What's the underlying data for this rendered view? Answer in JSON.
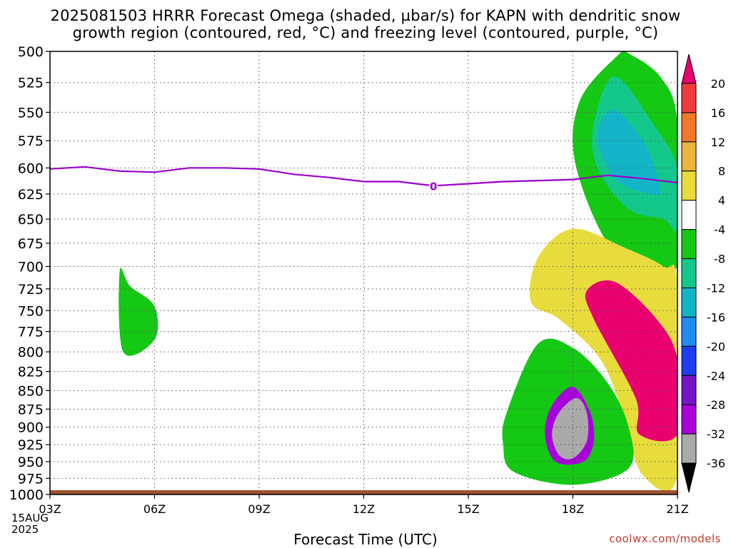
{
  "title_line1": "2025081503 HRRR Forecast Omega (shaded, µbar/s) for KAPN with dendritic snow",
  "title_line2": "growth region (contoured, red, °C) and freezing level (contoured, purple, °C)",
  "xlabel": "Forecast Time (UTC)",
  "credit": "coolwx.com/models",
  "date_line1": "15AUG",
  "date_line2": "2025",
  "colors": {
    "freezing_line": "#9900cc",
    "ground": "#a0522d",
    "credit": "#c0392b"
  },
  "chart_data": {
    "type": "heatmap",
    "title": "2025081503 HRRR Forecast Omega (shaded, µbar/s) for KAPN with dendritic snow growth region (contoured, red, °C) and freezing level (contoured, purple, °C)",
    "xlabel": "Forecast Time (UTC)",
    "ylabel": "",
    "x_ticks": [
      "03Z",
      "06Z",
      "09Z",
      "12Z",
      "15Z",
      "18Z",
      "21Z"
    ],
    "x_hours": [
      3,
      6,
      9,
      12,
      15,
      18,
      21
    ],
    "xlim": [
      3,
      21
    ],
    "y_ticks": [
      500,
      525,
      550,
      575,
      600,
      625,
      650,
      675,
      700,
      725,
      750,
      775,
      800,
      825,
      850,
      875,
      900,
      925,
      950,
      975,
      1000
    ],
    "ylim": [
      500,
      1000
    ],
    "y_scale": "log-pressure",
    "colorbar": {
      "labels": [
        "20",
        "16",
        "12",
        "8",
        "4",
        "-4",
        "-8",
        "-12",
        "-16",
        "-20",
        "-24",
        "-28",
        "-32",
        "-36"
      ],
      "colors": [
        "#e8006e",
        "#f03c3c",
        "#f07828",
        "#e8b43c",
        "#e8dc3c",
        "#ffffff",
        "#14c814",
        "#14c88c",
        "#14b4c8",
        "#1e8cf0",
        "#1e3cf0",
        "#7814c8",
        "#aa00dc",
        "#aaaaaa",
        "#000000"
      ]
    },
    "freezing_level": {
      "label": "0",
      "hours": [
        3,
        4,
        5,
        6,
        7,
        8,
        9,
        10,
        11,
        12,
        13,
        14,
        15,
        16,
        17,
        18,
        19,
        20,
        21
      ],
      "pressure": [
        601,
        599,
        603,
        604,
        600,
        600,
        601,
        606,
        609,
        613,
        613,
        617,
        615,
        613,
        612,
        611,
        607,
        610,
        614
      ]
    },
    "omega_regions": [
      {
        "value": -8,
        "hours": [
          5,
          5.3,
          6,
          6,
          5.1
        ],
        "pressure": [
          705,
          722,
          745,
          785,
          800
        ]
      },
      {
        "value": -8,
        "hours": [
          19.5,
          20.5,
          21,
          21,
          19.3,
          18.1,
          18.2,
          19.4
        ],
        "pressure": [
          500,
          520,
          560,
          700,
          690,
          600,
          540,
          500
        ]
      },
      {
        "value": -12,
        "hours": [
          19.2,
          20.3,
          21,
          21,
          20.6,
          19.6,
          18.7,
          18.6
        ],
        "pressure": [
          520,
          560,
          600,
          660,
          650,
          640,
          600,
          560
        ]
      },
      {
        "value": -16,
        "hours": [
          19.2,
          20.1,
          20.5,
          20.2,
          19.2,
          18.7
        ],
        "pressure": [
          548,
          580,
          620,
          625,
          610,
          570
        ]
      },
      {
        "value": 4,
        "hours": [
          17,
          18,
          19.5,
          20.6,
          21,
          21,
          20,
          19.5,
          18.8,
          17.6,
          16.8
        ],
        "pressure": [
          690,
          660,
          680,
          700,
          720,
          970,
          970,
          890,
          810,
          760,
          740
        ]
      },
      {
        "value": 20,
        "hours": [
          18.4,
          19.2,
          20.4,
          21,
          21,
          19.9,
          19.8,
          18.6
        ],
        "pressure": [
          727,
          717,
          760,
          810,
          910,
          910,
          860,
          760
        ]
      },
      {
        "value": -8,
        "hours": [
          16.1,
          17,
          18,
          19,
          19.6,
          19.6,
          18,
          16.3,
          16
        ],
        "pressure": [
          880,
          790,
          795,
          840,
          900,
          960,
          985,
          965,
          925
        ]
      },
      {
        "value": -32,
        "hours": [
          17.4,
          18,
          18.5,
          18.6,
          18.3,
          17.5,
          17.2
        ],
        "pressure": [
          870,
          845,
          880,
          920,
          950,
          950,
          910
        ]
      },
      {
        "value": -36,
        "hours": [
          17.6,
          18.1,
          18.4,
          18.4,
          18.0,
          17.6,
          17.4
        ],
        "pressure": [
          880,
          860,
          880,
          920,
          945,
          940,
          910
        ]
      }
    ]
  }
}
